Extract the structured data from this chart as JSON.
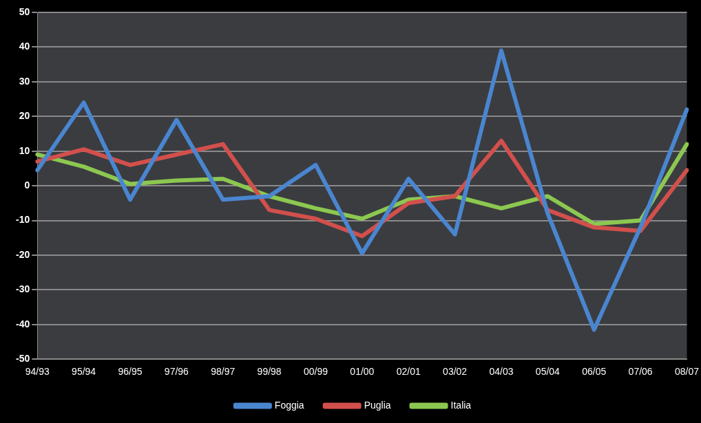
{
  "chart_data": {
    "type": "line",
    "categories": [
      "94/93",
      "95/94",
      "96/95",
      "97/96",
      "98/97",
      "99/98",
      "00/99",
      "01/00",
      "02/01",
      "03/02",
      "04/03",
      "05/04",
      "06/05",
      "07/06",
      "08/07"
    ],
    "series": [
      {
        "name": "Foggia",
        "color": "#4a86d0",
        "values": [
          4.5,
          24,
          -4,
          19,
          -4,
          -3,
          6,
          -19.5,
          2,
          -14,
          39,
          -8,
          -41.5,
          -12,
          22
        ]
      },
      {
        "name": "Puglia",
        "color": "#d2504c",
        "values": [
          7,
          10.5,
          6,
          9,
          12,
          -7,
          -9.5,
          -14.5,
          -5,
          -3,
          13,
          -7,
          -12,
          -13,
          4.5
        ]
      },
      {
        "name": "Italia",
        "color": "#8cc850",
        "values": [
          9,
          5.5,
          0.5,
          1.5,
          2,
          -3,
          -6.5,
          -9.5,
          -4,
          -3,
          -6.5,
          -3,
          -11,
          -10,
          12
        ]
      }
    ],
    "ylim": [
      -50,
      50
    ],
    "yticks": [
      -50,
      -40,
      -30,
      -20,
      -10,
      0,
      10,
      20,
      30,
      40,
      50
    ],
    "grid": "y",
    "legend": "bottom",
    "marker": "none",
    "line_style": "solid"
  }
}
